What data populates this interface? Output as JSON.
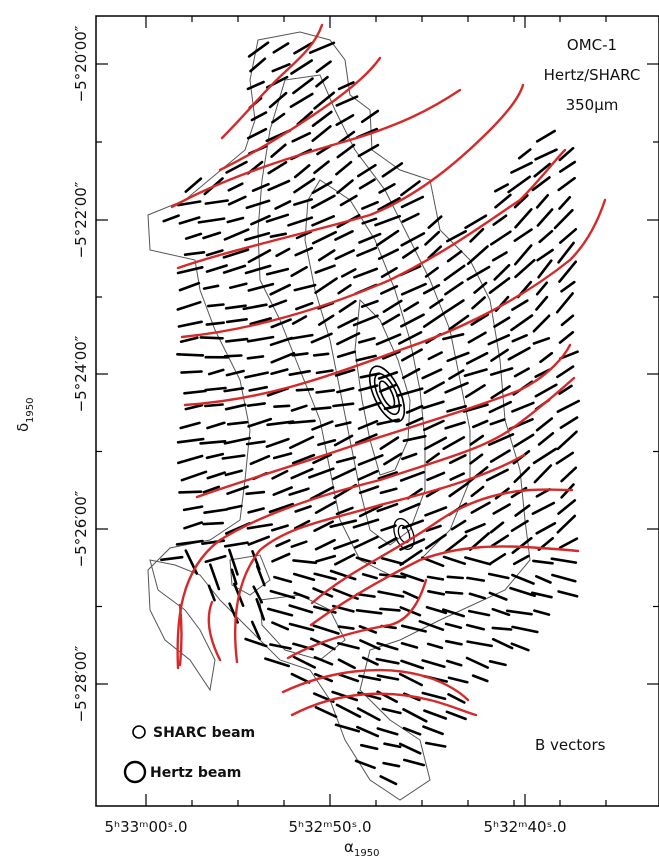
{
  "chart_data": {
    "type": "scatter",
    "title_lines": [
      "OMC-1",
      "Hertz/SHARC",
      "350μm"
    ],
    "xlabel": {
      "main": "α",
      "sub": "1950"
    },
    "ylabel": {
      "main": "δ",
      "sub": "1950"
    },
    "x_ticks": [
      "5ʰ33ᵐ00ˢ.0",
      "5ʰ32ᵐ50ˢ.0",
      "5ʰ32ᵐ40ˢ.0"
    ],
    "y_ticks": [
      "−5°20′00″",
      "−5°22′00″",
      "−5°24′00″",
      "−5°26′00″",
      "−5°28′00″"
    ],
    "legend": {
      "sharc": "SHARC beam",
      "hertz": "Hertz beam"
    },
    "annotation": "B vectors",
    "colors": {
      "field_lines": "#d42a2a",
      "vectors": "#000000",
      "contours": "#555555",
      "frame": "#000000"
    },
    "field_lines_count": 16
  }
}
